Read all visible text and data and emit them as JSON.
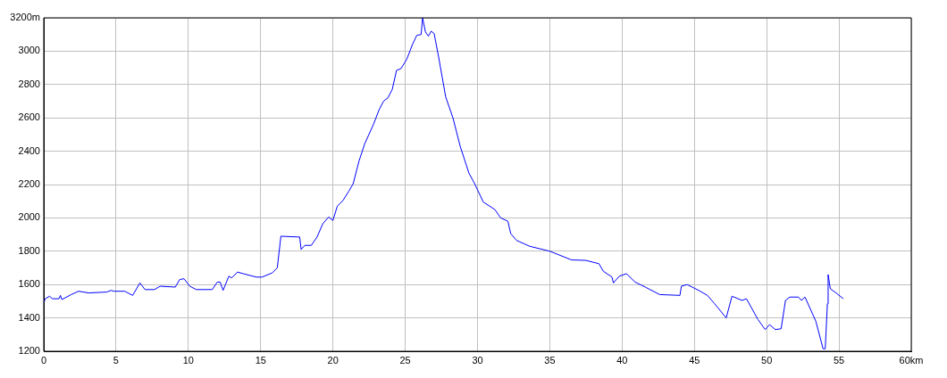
{
  "chart_data": {
    "type": "line",
    "xlim": [
      0,
      60
    ],
    "ylim": [
      1200,
      3200
    ],
    "xticks": [
      0,
      5,
      10,
      15,
      20,
      25,
      30,
      35,
      40,
      45,
      50,
      55,
      {
        "value": 60,
        "label": "60km"
      }
    ],
    "yticks": [
      1200,
      1400,
      1600,
      1800,
      2000,
      2200,
      2400,
      2600,
      2800,
      3000,
      {
        "value": 3200,
        "label": "3200m"
      }
    ],
    "grid": true,
    "legend": false,
    "marker": "none",
    "line_style": "solid",
    "series": [
      {
        "color": "#0000ff",
        "x": [
          0,
          0.1,
          0.4,
          0.6,
          1.05,
          1.15,
          1.25,
          1.9,
          2.4,
          3.1,
          4.35,
          4.65,
          4.85,
          5.6,
          6.15,
          6.65,
          7.0,
          7.65,
          8.05,
          9.1,
          9.4,
          9.7,
          10.1,
          10.55,
          11.65,
          12.0,
          12.2,
          12.4,
          12.8,
          13.0,
          13.4,
          13.8,
          14.7,
          15.1,
          15.8,
          16.15,
          16.4,
          17.7,
          17.8,
          18.05,
          18.5,
          18.9,
          19.3,
          19.7,
          20.0,
          20.3,
          20.7,
          21.1,
          21.4,
          21.8,
          22.2,
          22.8,
          23.2,
          23.5,
          23.8,
          24.1,
          24.4,
          24.7,
          25.1,
          25.5,
          25.8,
          26.1,
          26.2,
          26.4,
          26.6,
          26.8,
          27.0,
          27.3,
          27.8,
          28.3,
          28.8,
          29.4,
          29.8,
          30.4,
          31.2,
          31.6,
          32.1,
          32.3,
          32.7,
          33.6,
          35.0,
          36.5,
          37.5,
          38.4,
          38.7,
          39.3,
          39.4,
          39.8,
          40.3,
          40.9,
          41.6,
          42.6,
          44.0,
          44.1,
          44.5,
          45.3,
          45.9,
          46.4,
          47.2,
          47.6,
          48.3,
          48.6,
          49.4,
          49.9,
          50.2,
          50.6,
          51.0,
          51.3,
          51.6,
          52.2,
          52.4,
          52.65,
          53.4,
          53.9,
          54.05,
          54.2,
          54.25,
          54.4,
          54.8,
          55.3
        ],
        "values": [
          1490,
          1515,
          1530,
          1515,
          1515,
          1535,
          1510,
          1540,
          1560,
          1550,
          1555,
          1565,
          1560,
          1560,
          1535,
          1610,
          1570,
          1570,
          1590,
          1585,
          1630,
          1635,
          1590,
          1570,
          1570,
          1615,
          1615,
          1565,
          1650,
          1640,
          1675,
          1665,
          1645,
          1645,
          1670,
          1700,
          1890,
          1885,
          1810,
          1835,
          1835,
          1885,
          1965,
          2005,
          1985,
          2070,
          2105,
          2160,
          2205,
          2340,
          2445,
          2560,
          2650,
          2700,
          2720,
          2770,
          2885,
          2895,
          2950,
          3040,
          3095,
          3100,
          3200,
          3115,
          3090,
          3120,
          3105,
          2970,
          2725,
          2600,
          2430,
          2270,
          2205,
          2095,
          2050,
          2000,
          1980,
          1905,
          1865,
          1830,
          1800,
          1748,
          1745,
          1725,
          1680,
          1645,
          1610,
          1650,
          1665,
          1615,
          1585,
          1540,
          1535,
          1590,
          1600,
          1565,
          1535,
          1485,
          1400,
          1530,
          1505,
          1515,
          1390,
          1330,
          1360,
          1330,
          1335,
          1505,
          1525,
          1525,
          1505,
          1525,
          1380,
          1215,
          1215,
          1485,
          1660,
          1575,
          1550,
          1515
        ]
      }
    ]
  }
}
